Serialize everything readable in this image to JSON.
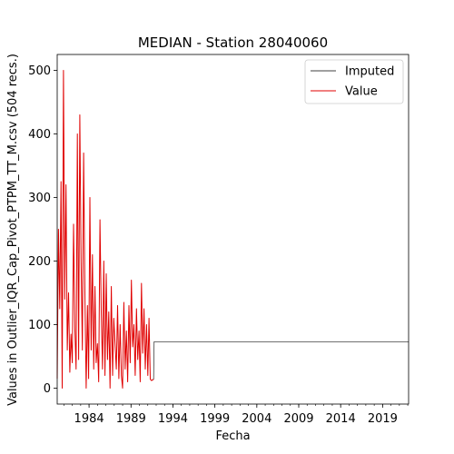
{
  "chart_data": {
    "type": "line",
    "title": "MEDIAN - Station 28040060",
    "xlabel": "Fecha",
    "ylabel": "Values in Outlier_IQR_Cap_Pivot_PTPM_TT_M.csv (504 recs.)",
    "xlim": [
      1980.2,
      2022.1
    ],
    "ylim": [
      -25,
      525
    ],
    "xticks": [
      1984,
      1989,
      1994,
      1999,
      2004,
      2009,
      2014,
      2019
    ],
    "xtick_labels": [
      "1984",
      "1989",
      "1994",
      "1999",
      "2004",
      "2009",
      "2014",
      "2019"
    ],
    "yticks": [
      0,
      100,
      200,
      300,
      400,
      500
    ],
    "ytick_labels": [
      "0",
      "100",
      "200",
      "300",
      "400",
      "500"
    ],
    "legend_position": "top-right",
    "grid": false,
    "series": [
      {
        "name": "Imputed",
        "color": "#404040",
        "x": [
          1991.4,
          1991.7,
          1991.75,
          2022.1
        ],
        "y": [
          12,
          14,
          73,
          73
        ]
      },
      {
        "name": "Value",
        "color": "#e00000",
        "x": [
          1980.2,
          1980.35,
          1980.5,
          1980.65,
          1980.8,
          1980.95,
          1981.1,
          1981.25,
          1981.4,
          1981.55,
          1981.7,
          1981.85,
          1982.0,
          1982.15,
          1982.3,
          1982.45,
          1982.6,
          1982.75,
          1982.9,
          1983.05,
          1983.2,
          1983.35,
          1983.5,
          1983.65,
          1983.8,
          1983.95,
          1984.1,
          1984.25,
          1984.4,
          1984.55,
          1984.7,
          1984.85,
          1985.0,
          1985.15,
          1985.3,
          1985.45,
          1985.6,
          1985.75,
          1985.9,
          1986.05,
          1986.2,
          1986.35,
          1986.5,
          1986.65,
          1986.8,
          1986.95,
          1987.1,
          1987.25,
          1987.4,
          1987.55,
          1987.7,
          1987.85,
          1988.0,
          1988.15,
          1988.3,
          1988.45,
          1988.6,
          1988.75,
          1988.9,
          1989.05,
          1989.2,
          1989.35,
          1989.5,
          1989.65,
          1989.8,
          1989.95,
          1990.1,
          1990.25,
          1990.4,
          1990.55,
          1990.7,
          1990.85,
          1991.0,
          1991.15,
          1991.3,
          1991.45,
          1991.7
        ],
        "y": [
          15,
          250,
          125,
          325,
          0,
          500,
          140,
          320,
          60,
          150,
          25,
          85,
          40,
          258,
          95,
          30,
          400,
          45,
          430,
          200,
          60,
          370,
          150,
          0,
          130,
          15,
          300,
          60,
          210,
          30,
          160,
          40,
          70,
          10,
          265,
          120,
          30,
          200,
          20,
          180,
          45,
          120,
          0,
          160,
          20,
          110,
          70,
          30,
          130,
          15,
          100,
          20,
          0,
          135,
          30,
          90,
          10,
          130,
          40,
          170,
          65,
          100,
          20,
          125,
          45,
          90,
          10,
          165,
          55,
          125,
          30,
          100,
          20,
          110,
          14,
          12,
          14
        ]
      }
    ]
  }
}
